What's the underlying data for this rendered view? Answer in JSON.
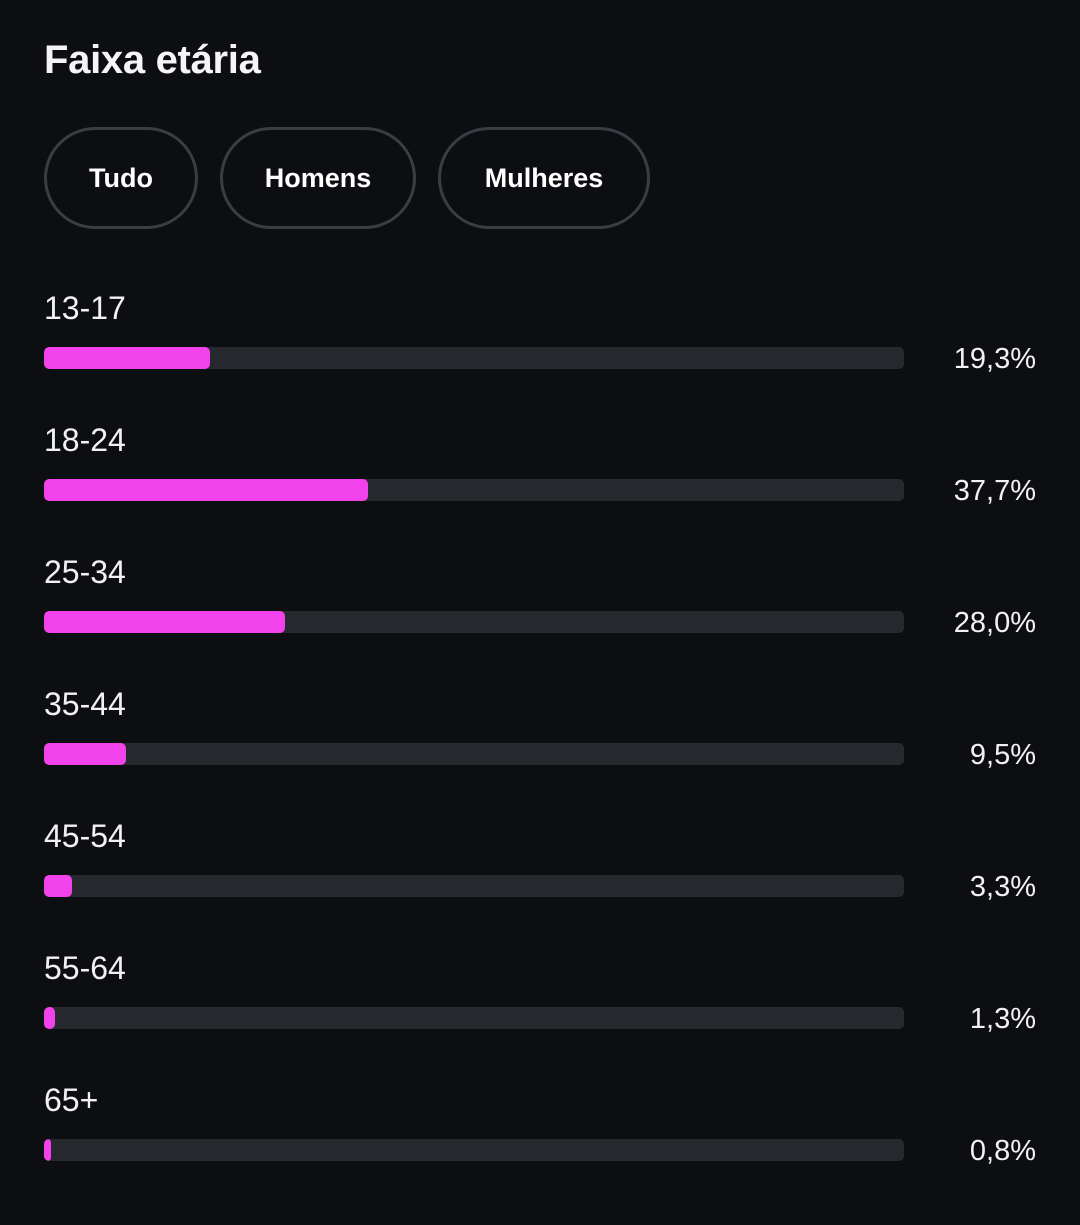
{
  "header": {
    "title": "Faixa etária"
  },
  "filters": [
    {
      "label": "Tudo",
      "active": true
    },
    {
      "label": "Homens",
      "active": false
    },
    {
      "label": "Mulheres",
      "active": false
    }
  ],
  "colors": {
    "bar_fill": "#f242ec",
    "bar_track": "#26282e",
    "background": "#0c0e12",
    "chip_active": "#2b2e36",
    "chip_border": "#3a3d44"
  },
  "age_groups": [
    {
      "label": "13-17",
      "value_text": "19,3%",
      "value": 19.3
    },
    {
      "label": "18-24",
      "value_text": "37,7%",
      "value": 37.7
    },
    {
      "label": "25-34",
      "value_text": "28,0%",
      "value": 28.0
    },
    {
      "label": "35-44",
      "value_text": "9,5%",
      "value": 9.5
    },
    {
      "label": "45-54",
      "value_text": "3,3%",
      "value": 3.3
    },
    {
      "label": "55-64",
      "value_text": "1,3%",
      "value": 1.3
    },
    {
      "label": "65+",
      "value_text": "0,8%",
      "value": 0.8
    }
  ]
}
